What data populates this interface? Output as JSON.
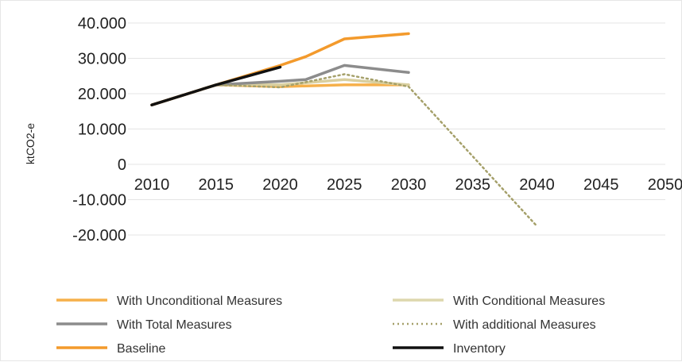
{
  "chart_data": {
    "type": "line",
    "xlabel": "",
    "ylabel": "ktCO2-e",
    "x": [
      2010,
      2015,
      2020,
      2025,
      2030,
      2035,
      2040,
      2045,
      2050
    ],
    "x_tick_labels": [
      "2010",
      "2015",
      "2020",
      "2025",
      "2030",
      "2035",
      "2040",
      "2045",
      "2050"
    ],
    "y_ticks": [
      40000,
      30000,
      20000,
      10000,
      0,
      -10000,
      -20000
    ],
    "y_tick_labels": [
      "40.000",
      "30.000",
      "20.000",
      "10.000",
      "0",
      "-10.000",
      "-20.000"
    ],
    "ylim": [
      -20000,
      40000
    ],
    "xlim": [
      2010,
      2050
    ],
    "grid": "horizontal",
    "legend_position": "bottom",
    "series": [
      {
        "name": "With Unconditional Measures",
        "color": "#f6b04a",
        "style": "solid",
        "x": [
          2010,
          2015,
          2020,
          2025,
          2030
        ],
        "values": [
          16800,
          22500,
          22000,
          22500,
          22500
        ]
      },
      {
        "name": "With Conditional Measures",
        "color": "#d9cf9f",
        "style": "solid",
        "x": [
          2010,
          2015,
          2020,
          2025,
          2030
        ],
        "values": [
          16800,
          22500,
          22500,
          24000,
          22500
        ]
      },
      {
        "name": "With Total Measures",
        "color": "#8c8c8c",
        "style": "solid",
        "x": [
          2010,
          2015,
          2020,
          2022,
          2025,
          2030
        ],
        "values": [
          16800,
          22500,
          23500,
          24000,
          28000,
          26000
        ]
      },
      {
        "name": "With additional Measures",
        "color": "#a5a06a",
        "style": "dotted",
        "x": [
          2010,
          2015,
          2020,
          2025,
          2030,
          2040
        ],
        "values": [
          16800,
          22500,
          21800,
          25500,
          22000,
          -17500
        ]
      },
      {
        "name": "Baseline",
        "color": "#f39a2c",
        "style": "solid",
        "x": [
          2010,
          2015,
          2020,
          2022,
          2025,
          2030
        ],
        "values": [
          16800,
          22500,
          28000,
          30500,
          35500,
          37000
        ]
      },
      {
        "name": "Inventory",
        "color": "#111111",
        "style": "solid",
        "x": [
          2010,
          2015,
          2020
        ],
        "values": [
          16800,
          22500,
          27500
        ]
      }
    ],
    "legend": [
      {
        "label": "With Unconditional Measures",
        "color": "#f6b04a",
        "style": "solid"
      },
      {
        "label": "With Conditional Measures",
        "color": "#ddd7ad",
        "style": "solid"
      },
      {
        "label": "With Total Measures",
        "color": "#8c8c8c",
        "style": "solid"
      },
      {
        "label": "With additional Measures",
        "color": "#a5a06a",
        "style": "dotted"
      },
      {
        "label": "Baseline",
        "color": "#f39a2c",
        "style": "solid"
      },
      {
        "label": "Inventory",
        "color": "#111111",
        "style": "solid"
      }
    ]
  }
}
